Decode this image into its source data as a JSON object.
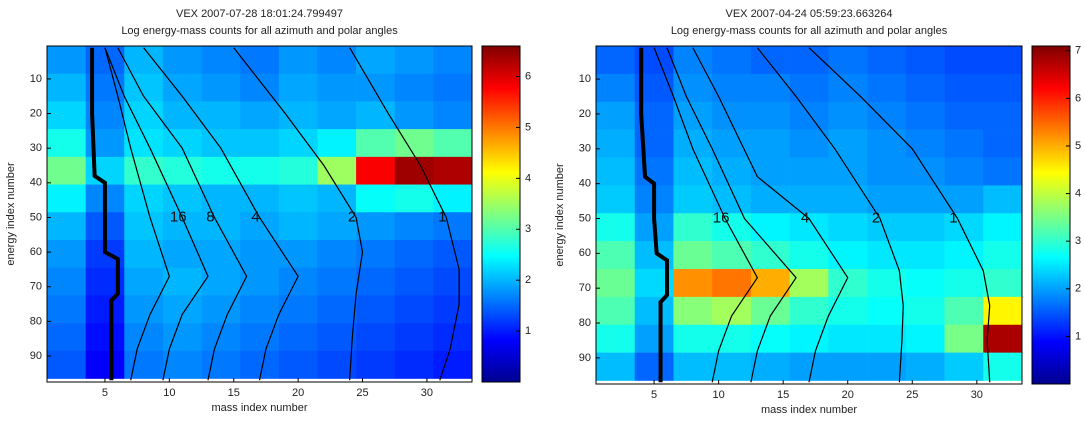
{
  "chart_data": [
    {
      "type": "heatmap",
      "title": "VEX 2007-07-28 18:01:24.799497",
      "subtitle": "Log energy-mass counts for all azimuth and polar angles",
      "x_label": "mass index number",
      "y_label": "energy index number",
      "xlim": [
        0.5,
        33.5
      ],
      "xticks": [
        5,
        10,
        15,
        20,
        25,
        30
      ],
      "ylim": [
        0.5,
        97.5
      ],
      "yticks": [
        10,
        20,
        30,
        40,
        50,
        60,
        70,
        80,
        90
      ],
      "clim": [
        0,
        6.6
      ],
      "cticks": [
        1,
        2,
        3,
        4,
        5,
        6
      ],
      "colormap": "jet",
      "x": [
        2,
        5,
        8,
        11,
        14,
        17,
        20,
        23,
        26,
        29,
        32
      ],
      "y": [
        4.5,
        12.5,
        20.5,
        28.5,
        36.5,
        44.5,
        52.5,
        60.5,
        68.5,
        76.5,
        84.5,
        92.5
      ],
      "z": [
        [
          1.8,
          1.5,
          2.0,
          1.8,
          1.7,
          1.6,
          1.8,
          1.7,
          1.9,
          1.8,
          1.7
        ],
        [
          2.0,
          1.6,
          2.1,
          1.9,
          1.8,
          1.7,
          1.9,
          1.8,
          1.8,
          1.7,
          1.6
        ],
        [
          2.2,
          1.7,
          2.2,
          2.0,
          2.0,
          1.9,
          2.0,
          1.9,
          2.0,
          1.8,
          1.7
        ],
        [
          2.6,
          1.8,
          2.3,
          2.2,
          2.1,
          2.1,
          2.2,
          2.4,
          3.0,
          3.2,
          3.0
        ],
        [
          3.2,
          2.2,
          2.8,
          2.7,
          2.6,
          2.6,
          2.7,
          3.5,
          5.8,
          6.4,
          6.3
        ],
        [
          2.4,
          1.7,
          2.2,
          2.1,
          2.0,
          2.0,
          2.1,
          2.0,
          2.5,
          2.6,
          2.4
        ],
        [
          2.0,
          1.4,
          2.1,
          2.0,
          2.0,
          1.9,
          2.0,
          1.9,
          1.8,
          1.7,
          1.6
        ],
        [
          1.8,
          1.2,
          2.0,
          1.9,
          1.9,
          1.8,
          1.8,
          1.7,
          1.6,
          1.5,
          1.4
        ],
        [
          1.7,
          1.1,
          1.9,
          2.0,
          1.9,
          1.8,
          1.7,
          1.6,
          1.5,
          1.4,
          1.3
        ],
        [
          1.6,
          1.0,
          1.8,
          1.9,
          1.8,
          1.7,
          1.6,
          1.5,
          1.4,
          1.3,
          1.2
        ],
        [
          1.5,
          0.9,
          1.7,
          1.8,
          1.7,
          1.6,
          1.5,
          1.4,
          1.3,
          1.2,
          1.1
        ],
        [
          1.4,
          0.8,
          1.6,
          1.7,
          1.6,
          1.5,
          1.4,
          1.3,
          1.2,
          1.1,
          1.0
        ]
      ],
      "contours": [
        {
          "label": "1",
          "x": [
            24,
            27,
            29.5,
            31.5,
            32.5,
            32.5,
            31.8,
            31
          ],
          "y": [
            1,
            20,
            35,
            50,
            65,
            75,
            88,
            97
          ]
        },
        {
          "label": "2",
          "x": [
            15,
            19,
            22,
            24.5,
            25,
            24.5,
            24.2,
            24
          ],
          "y": [
            1,
            20,
            35,
            50,
            60,
            72,
            85,
            97
          ]
        },
        {
          "label": "4",
          "x": [
            8,
            11,
            14,
            17,
            20,
            18.5,
            17.5,
            17
          ],
          "y": [
            1,
            15,
            30,
            50,
            67,
            78,
            88,
            97
          ]
        },
        {
          "label": "8",
          "x": [
            6,
            8,
            11,
            13.5,
            16,
            14.5,
            13.5,
            13
          ],
          "y": [
            1,
            15,
            30,
            50,
            67,
            78,
            88,
            97
          ]
        },
        {
          "label": "16",
          "x": [
            5,
            6.5,
            8.5,
            11,
            13,
            11,
            10,
            9.5
          ],
          "y": [
            1,
            15,
            30,
            50,
            67,
            78,
            88,
            97
          ]
        },
        {
          "x": [
            5,
            6,
            7,
            8.5,
            10,
            8.5,
            7.5,
            7
          ],
          "y": [
            1,
            15,
            30,
            50,
            67,
            78,
            88,
            97
          ]
        },
        {
          "x": [
            4,
            4,
            4.2,
            5,
            5,
            6,
            6,
            5.5,
            5.5
          ],
          "y": [
            1,
            20,
            38,
            40,
            60,
            62,
            72,
            74,
            97
          ],
          "thick": true
        }
      ]
    },
    {
      "type": "heatmap",
      "title": "VEX 2007-04-24 05:59:23.663264",
      "subtitle": "Log energy-mass counts for all azimuth and polar angles",
      "x_label": "mass index number",
      "y_label": "energy index number",
      "xlim": [
        0.5,
        33.5
      ],
      "xticks": [
        5,
        10,
        15,
        20,
        25,
        30
      ],
      "ylim": [
        0.5,
        97.5
      ],
      "yticks": [
        10,
        20,
        30,
        40,
        50,
        60,
        70,
        80,
        90
      ],
      "clim": [
        0,
        7.1
      ],
      "cticks": [
        1,
        2,
        3,
        4,
        5,
        6,
        7
      ],
      "colormap": "jet",
      "x": [
        2,
        5,
        8,
        11,
        14,
        17,
        20,
        23,
        26,
        29,
        32
      ],
      "y": [
        4.5,
        12.5,
        20.5,
        28.5,
        36.5,
        44.5,
        52.5,
        60.5,
        68.5,
        76.5,
        84.5,
        92.5
      ],
      "z": [
        [
          1.6,
          1.4,
          1.8,
          1.7,
          1.6,
          1.6,
          1.7,
          1.6,
          1.5,
          1.4,
          1.4
        ],
        [
          1.8,
          1.5,
          1.9,
          1.8,
          1.8,
          1.7,
          1.8,
          1.7,
          1.6,
          1.5,
          1.5
        ],
        [
          2.0,
          1.6,
          2.0,
          1.9,
          1.9,
          1.8,
          1.9,
          1.8,
          1.7,
          1.6,
          1.6
        ],
        [
          2.1,
          1.6,
          2.1,
          2.0,
          2.0,
          1.9,
          2.0,
          1.9,
          1.8,
          1.7,
          1.6
        ],
        [
          2.2,
          1.7,
          2.2,
          2.1,
          2.0,
          2.0,
          2.0,
          1.9,
          1.9,
          1.8,
          1.7
        ],
        [
          2.3,
          1.8,
          2.3,
          2.2,
          2.1,
          2.1,
          2.1,
          2.0,
          2.0,
          2.0,
          2.2
        ],
        [
          2.8,
          2.0,
          3.0,
          2.8,
          2.6,
          2.5,
          2.4,
          2.3,
          2.3,
          2.4,
          2.6
        ],
        [
          3.2,
          2.2,
          3.4,
          3.2,
          3.0,
          2.8,
          2.6,
          2.5,
          2.5,
          2.6,
          2.8
        ],
        [
          3.4,
          2.4,
          5.2,
          5.4,
          5.0,
          3.8,
          3.0,
          2.8,
          2.7,
          2.8,
          3.0
        ],
        [
          3.2,
          2.2,
          3.6,
          3.8,
          3.4,
          3.0,
          2.8,
          2.7,
          2.8,
          3.2,
          4.5
        ],
        [
          2.8,
          2.0,
          2.8,
          2.8,
          2.7,
          2.6,
          2.5,
          2.5,
          2.6,
          3.5,
          6.8
        ],
        [
          2.2,
          1.6,
          2.2,
          2.2,
          2.1,
          2.0,
          2.0,
          2.0,
          2.1,
          2.3,
          2.8
        ]
      ],
      "contours": [
        {
          "label": "1",
          "x": [
            17,
            21,
            25,
            28.5,
            30.5,
            31,
            30.8,
            31
          ],
          "y": [
            1,
            15,
            30,
            50,
            65,
            75,
            85,
            97
          ]
        },
        {
          "label": "2",
          "x": [
            13,
            16,
            19,
            22.5,
            24,
            24.3,
            24.2,
            24
          ],
          "y": [
            1,
            15,
            30,
            50,
            65,
            75,
            85,
            97
          ]
        },
        {
          "label": "4",
          "x": [
            8,
            10,
            13,
            17,
            20,
            18.5,
            17.5,
            17
          ],
          "y": [
            1,
            15,
            38,
            50,
            67,
            78,
            88,
            97
          ]
        },
        {
          "x": [
            6,
            7.5,
            9.5,
            12,
            16,
            14,
            13,
            12.5
          ],
          "y": [
            1,
            15,
            30,
            50,
            67,
            78,
            88,
            97
          ]
        },
        {
          "label": "16",
          "x": [
            5,
            6.5,
            8,
            10.5,
            13,
            11,
            10,
            9.5
          ],
          "y": [
            1,
            15,
            30,
            50,
            67,
            78,
            88,
            97
          ]
        },
        {
          "x": [
            4,
            4,
            4.3,
            5,
            5,
            5.2,
            6,
            6,
            5.5,
            5.5
          ],
          "y": [
            1,
            20,
            38,
            40,
            50,
            60,
            62,
            72,
            74,
            97
          ],
          "thick": true
        }
      ]
    }
  ]
}
